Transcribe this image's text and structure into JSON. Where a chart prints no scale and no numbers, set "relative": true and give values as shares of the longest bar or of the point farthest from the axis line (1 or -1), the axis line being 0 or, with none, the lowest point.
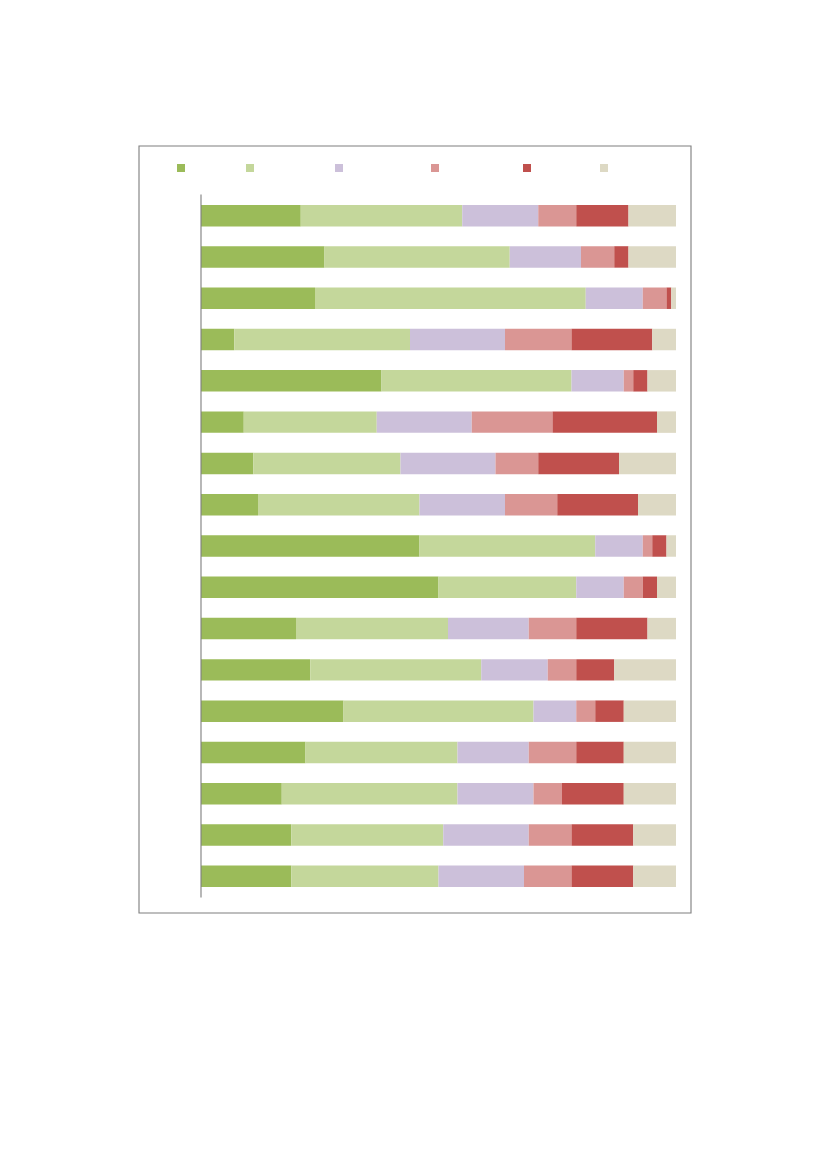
{
  "chart_data": {
    "type": "bar",
    "orientation": "horizontal",
    "stacked": true,
    "relative": true,
    "grid": false,
    "categories": [
      null,
      null,
      null,
      null,
      null,
      null,
      null,
      null,
      null,
      null,
      null,
      null,
      null,
      null,
      null,
      null,
      null
    ],
    "series": [
      {
        "color": "#9bbb59",
        "values": [
          0.21,
          0.26,
          0.24,
          0.07,
          0.38,
          0.09,
          0.11,
          0.12,
          0.46,
          0.5,
          0.2,
          0.23,
          0.3,
          0.22,
          0.17,
          0.19,
          0.19
        ]
      },
      {
        "color": "#c4d79b",
        "values": [
          0.34,
          0.39,
          0.57,
          0.37,
          0.4,
          0.28,
          0.31,
          0.34,
          0.37,
          0.29,
          0.32,
          0.36,
          0.4,
          0.32,
          0.37,
          0.32,
          0.31
        ]
      },
      {
        "color": "#ccc0da",
        "values": [
          0.16,
          0.15,
          0.12,
          0.2,
          0.11,
          0.2,
          0.2,
          0.18,
          0.1,
          0.1,
          0.17,
          0.14,
          0.09,
          0.15,
          0.16,
          0.18,
          0.18
        ]
      },
      {
        "color": "#da9694",
        "values": [
          0.08,
          0.07,
          0.05,
          0.14,
          0.02,
          0.17,
          0.09,
          0.11,
          0.02,
          0.04,
          0.1,
          0.06,
          0.04,
          0.1,
          0.06,
          0.09,
          0.1
        ]
      },
      {
        "color": "#c0504d",
        "values": [
          0.11,
          0.03,
          0.01,
          0.17,
          0.03,
          0.22,
          0.17,
          0.17,
          0.03,
          0.03,
          0.15,
          0.08,
          0.06,
          0.1,
          0.13,
          0.13,
          0.13
        ]
      },
      {
        "color": "#ddd9c4",
        "values": [
          0.1,
          0.1,
          0.01,
          0.05,
          0.06,
          0.04,
          0.12,
          0.08,
          0.02,
          0.04,
          0.06,
          0.13,
          0.11,
          0.11,
          0.11,
          0.09,
          0.09
        ]
      }
    ]
  }
}
